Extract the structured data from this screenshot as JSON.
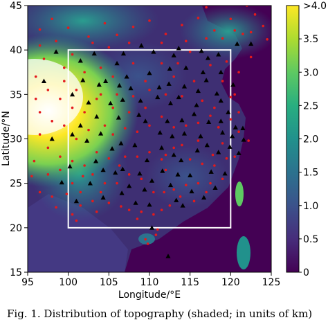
{
  "chart_data": {
    "type": "heatmap",
    "subject": "topography",
    "xlabel": "Longitude/°E",
    "ylabel": "Latitude/°N",
    "xlim": [
      95,
      125
    ],
    "ylim": [
      15,
      45
    ],
    "x_ticks": [
      95,
      100,
      105,
      110,
      115,
      120,
      125
    ],
    "y_ticks": [
      15,
      20,
      25,
      30,
      35,
      40,
      45
    ],
    "colorbar": {
      "range": [
        0,
        4.0
      ],
      "ticks": [
        0,
        0.5,
        1.0,
        1.5,
        2.0,
        2.5,
        3.0,
        3.5
      ],
      "tick_labels": [
        "0",
        "0.5",
        "1.0",
        "1.5",
        "2.0",
        "2.5",
        "3.0",
        "3.5"
      ],
      "top_label": ">4.0",
      "colormap": "viridis"
    },
    "domain_box": {
      "lon": [
        100,
        120
      ],
      "lat": [
        20,
        40
      ],
      "color": "#ffffff"
    },
    "marker_colors": {
      "triangles": "#000000",
      "dots": "#e41a1c"
    },
    "stations_triangles": [
      [
        98.5,
        39.8
      ],
      [
        101.5,
        38.8
      ],
      [
        103.2,
        39.6
      ],
      [
        106.0,
        38.5
      ],
      [
        110.5,
        39.8
      ],
      [
        113.0,
        39.4
      ],
      [
        116.4,
        39.9
      ],
      [
        118.5,
        39.5
      ],
      [
        101.8,
        36.6
      ],
      [
        103.8,
        36.1
      ],
      [
        106.3,
        36.0
      ],
      [
        108.9,
        34.3
      ],
      [
        111.2,
        35.8
      ],
      [
        112.5,
        37.9
      ],
      [
        114.5,
        38.0
      ],
      [
        117.2,
        39.1
      ],
      [
        117.0,
        36.6
      ],
      [
        120.3,
        36.1
      ],
      [
        113.6,
        34.7
      ],
      [
        115.8,
        33.8
      ],
      [
        118.8,
        34.3
      ],
      [
        105.2,
        34.0
      ],
      [
        107.2,
        37.0
      ],
      [
        110.0,
        37.4
      ],
      [
        102.7,
        25.0
      ],
      [
        104.0,
        30.6
      ],
      [
        106.5,
        29.5
      ],
      [
        106.7,
        26.6
      ],
      [
        108.3,
        22.8
      ],
      [
        110.3,
        25.3
      ],
      [
        113.0,
        28.2
      ],
      [
        114.3,
        30.6
      ],
      [
        115.9,
        28.7
      ],
      [
        117.3,
        31.9
      ],
      [
        118.8,
        32.0
      ],
      [
        120.2,
        30.3
      ],
      [
        119.3,
        26.1
      ],
      [
        113.3,
        23.1
      ],
      [
        114.1,
        22.5
      ],
      [
        110.3,
        20.0
      ],
      [
        100.2,
        26.9
      ],
      [
        99.2,
        25.1
      ],
      [
        101.0,
        23.0
      ],
      [
        104.3,
        23.4
      ],
      [
        107.5,
        24.7
      ],
      [
        109.4,
        24.3
      ],
      [
        111.6,
        26.4
      ],
      [
        112.6,
        24.8
      ],
      [
        116.7,
        23.4
      ],
      [
        118.1,
        24.5
      ],
      [
        117.6,
        26.3
      ],
      [
        115.0,
        25.9
      ],
      [
        113.9,
        27.6
      ],
      [
        111.5,
        29.0
      ],
      [
        109.7,
        27.6
      ],
      [
        108.2,
        29.3
      ],
      [
        105.4,
        28.9
      ],
      [
        102.3,
        29.8
      ],
      [
        100.5,
        30.5
      ],
      [
        98.0,
        30.0
      ],
      [
        101.5,
        31.5
      ],
      [
        103.5,
        32.5
      ],
      [
        106.2,
        32.4
      ],
      [
        108.7,
        32.7
      ],
      [
        111.3,
        30.7
      ],
      [
        112.2,
        32.0
      ],
      [
        114.0,
        32.1
      ],
      [
        116.3,
        30.3
      ],
      [
        117.1,
        29.3
      ],
      [
        119.9,
        29.1
      ],
      [
        121.5,
        31.2
      ],
      [
        120.6,
        31.3
      ],
      [
        121.6,
        29.9
      ],
      [
        118.5,
        28.5
      ],
      [
        116.0,
        35.4
      ],
      [
        118.3,
        35.1
      ],
      [
        114.3,
        35.9
      ],
      [
        111.0,
        34.7
      ],
      [
        112.4,
        36.2
      ],
      [
        107.7,
        35.7
      ],
      [
        100.5,
        35.0
      ],
      [
        104.6,
        36.5
      ],
      [
        102.5,
        34.1
      ],
      [
        106.7,
        34.4
      ],
      [
        109.5,
        32.0
      ],
      [
        112.8,
        30.3
      ],
      [
        115.5,
        32.8
      ],
      [
        110.0,
        22.6
      ],
      [
        106.6,
        23.9
      ],
      [
        104.3,
        26.5
      ],
      [
        103.4,
        27.5
      ],
      [
        105.8,
        26.2
      ],
      [
        108.8,
        26.1
      ],
      [
        113.5,
        26.0
      ],
      [
        115.2,
        24.1
      ],
      [
        119.0,
        30.7
      ],
      [
        121.0,
        28.4
      ],
      [
        119.7,
        33.0
      ],
      [
        112.6,
        34.0
      ],
      [
        116.6,
        37.5
      ],
      [
        118.8,
        37.5
      ],
      [
        113.6,
        40.2
      ],
      [
        120.8,
        40.7
      ],
      [
        122.5,
        40.7
      ],
      [
        109.0,
        40.5
      ],
      [
        106.8,
        39.6
      ],
      [
        97.0,
        36.5
      ],
      [
        112.3,
        16.8
      ]
    ],
    "stations_dots": [
      [
        96.5,
        42.3
      ],
      [
        98.0,
        43.5
      ],
      [
        100.0,
        42.5
      ],
      [
        102.5,
        41.5
      ],
      [
        104.5,
        43.0
      ],
      [
        106.0,
        41.7
      ],
      [
        108.0,
        42.6
      ],
      [
        110.0,
        43.3
      ],
      [
        112.0,
        41.8
      ],
      [
        114.0,
        42.8
      ],
      [
        116.0,
        43.6
      ],
      [
        118.0,
        42.2
      ],
      [
        120.0,
        43.5
      ],
      [
        121.5,
        41.8
      ],
      [
        123.0,
        44.0
      ],
      [
        124.0,
        42.7
      ],
      [
        117.0,
        44.8
      ],
      [
        122.0,
        45.0
      ],
      [
        97.0,
        39.0
      ],
      [
        99.5,
        38.0
      ],
      [
        102.0,
        37.5
      ],
      [
        104.0,
        38.0
      ],
      [
        105.5,
        37.0
      ],
      [
        108.0,
        38.5
      ],
      [
        109.5,
        36.5
      ],
      [
        111.5,
        38.5
      ],
      [
        113.5,
        38.5
      ],
      [
        115.0,
        39.8
      ],
      [
        117.5,
        38.3
      ],
      [
        119.5,
        38.7
      ],
      [
        121.0,
        37.5
      ],
      [
        122.5,
        39.2
      ],
      [
        96.0,
        37.0
      ],
      [
        97.5,
        35.5
      ],
      [
        99.0,
        34.5
      ],
      [
        100.5,
        33.5
      ],
      [
        102.0,
        33.0
      ],
      [
        104.0,
        35.0
      ],
      [
        106.0,
        35.0
      ],
      [
        108.0,
        34.8
      ],
      [
        110.0,
        35.5
      ],
      [
        112.0,
        35.0
      ],
      [
        114.0,
        34.8
      ],
      [
        116.5,
        34.3
      ],
      [
        118.0,
        33.5
      ],
      [
        120.0,
        34.7
      ],
      [
        121.0,
        33.0
      ],
      [
        96.5,
        33.0
      ],
      [
        98.0,
        32.0
      ],
      [
        99.5,
        31.5
      ],
      [
        101.0,
        30.0
      ],
      [
        102.5,
        31.0
      ],
      [
        104.5,
        31.5
      ],
      [
        105.5,
        30.5
      ],
      [
        107.0,
        31.2
      ],
      [
        108.5,
        30.8
      ],
      [
        110.0,
        31.5
      ],
      [
        111.5,
        32.5
      ],
      [
        113.0,
        31.3
      ],
      [
        114.5,
        31.5
      ],
      [
        116.0,
        31.8
      ],
      [
        117.5,
        32.6
      ],
      [
        118.5,
        31.3
      ],
      [
        120.0,
        32.2
      ],
      [
        121.0,
        30.8
      ],
      [
        96.5,
        30.5
      ],
      [
        97.5,
        29.0
      ],
      [
        99.0,
        28.0
      ],
      [
        100.5,
        27.5
      ],
      [
        102.0,
        27.0
      ],
      [
        103.5,
        28.5
      ],
      [
        105.0,
        27.8
      ],
      [
        107.0,
        28.0
      ],
      [
        108.5,
        28.0
      ],
      [
        110.0,
        28.5
      ],
      [
        111.5,
        27.7
      ],
      [
        113.0,
        29.0
      ],
      [
        114.0,
        29.3
      ],
      [
        115.0,
        27.7
      ],
      [
        116.5,
        27.2
      ],
      [
        118.0,
        27.0
      ],
      [
        119.5,
        27.8
      ],
      [
        120.5,
        28.0
      ],
      [
        95.8,
        27.5
      ],
      [
        97.5,
        26.0
      ],
      [
        99.0,
        26.5
      ],
      [
        100.5,
        25.0
      ],
      [
        101.8,
        25.8
      ],
      [
        103.0,
        26.0
      ],
      [
        104.5,
        25.0
      ],
      [
        106.0,
        25.0
      ],
      [
        107.5,
        26.0
      ],
      [
        109.0,
        25.5
      ],
      [
        110.5,
        24.0
      ],
      [
        111.8,
        24.0
      ],
      [
        113.0,
        24.3
      ],
      [
        114.5,
        24.8
      ],
      [
        116.0,
        25.0
      ],
      [
        117.5,
        25.0
      ],
      [
        119.0,
        25.5
      ],
      [
        96.5,
        24.0
      ],
      [
        98.0,
        23.5
      ],
      [
        99.8,
        23.8
      ],
      [
        101.5,
        24.0
      ],
      [
        103.0,
        23.0
      ],
      [
        105.0,
        22.8
      ],
      [
        106.5,
        22.4
      ],
      [
        107.5,
        22.0
      ],
      [
        109.0,
        21.8
      ],
      [
        110.5,
        21.5
      ],
      [
        111.5,
        22.0
      ],
      [
        112.5,
        22.5
      ],
      [
        113.8,
        23.5
      ],
      [
        115.5,
        23.0
      ],
      [
        117.0,
        24.0
      ],
      [
        100.5,
        21.5
      ],
      [
        101.5,
        22.5
      ],
      [
        103.5,
        21.8
      ],
      [
        108.5,
        21.0
      ],
      [
        109.5,
        18.7
      ],
      [
        110.8,
        19.2
      ],
      [
        109.8,
        18.2
      ],
      [
        111.0,
        19.8
      ],
      [
        96.5,
        40.5
      ],
      [
        98.5,
        41.0
      ],
      [
        100.5,
        39.5
      ],
      [
        103.0,
        40.8
      ],
      [
        105.0,
        40.3
      ],
      [
        107.5,
        40.8
      ],
      [
        111.5,
        40.8
      ],
      [
        114.5,
        41.0
      ],
      [
        117.0,
        41.3
      ],
      [
        119.0,
        41.3
      ],
      [
        120.5,
        42.2
      ],
      [
        122.5,
        42.0
      ],
      [
        124.5,
        41.2
      ],
      [
        96.0,
        34.5
      ],
      [
        94.9,
        29.5
      ],
      [
        95.5,
        25.8
      ],
      [
        101.0,
        35.5
      ],
      [
        115.5,
        36.5
      ],
      [
        113.0,
        37.0
      ],
      [
        119.0,
        36.5
      ],
      [
        120.5,
        35.0
      ],
      [
        122.2,
        29.8
      ],
      [
        119.0,
        29.5
      ],
      [
        117.8,
        28.2
      ],
      [
        116.0,
        29.8
      ],
      [
        112.0,
        26.5
      ],
      [
        106.3,
        27.0
      ],
      [
        104.0,
        24.0
      ],
      [
        98.5,
        22.3
      ],
      [
        101.0,
        20.8
      ],
      [
        112.0,
        28.2
      ],
      [
        109.5,
        33.5
      ],
      [
        107.5,
        33.0
      ],
      [
        105.5,
        33.5
      ],
      [
        103.5,
        34.5
      ],
      [
        99.5,
        36.5
      ]
    ]
  },
  "caption": {
    "text": "Fig. 1. Distribution of topography (shaded; in units of km)"
  }
}
